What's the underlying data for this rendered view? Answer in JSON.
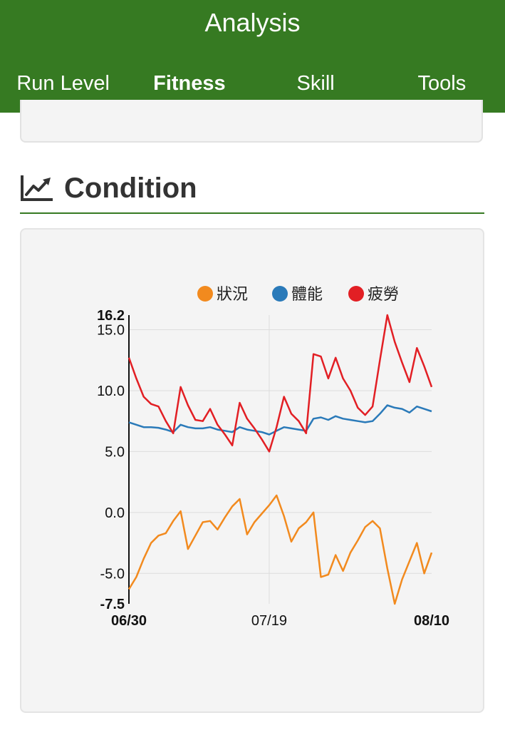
{
  "header": {
    "title": "Analysis",
    "tabs": [
      {
        "label": "Run Level",
        "active": false
      },
      {
        "label": "Fitness",
        "active": true
      },
      {
        "label": "Skill",
        "active": false
      },
      {
        "label": "Tools",
        "active": false
      }
    ]
  },
  "section": {
    "title": "Condition",
    "icon": "line-chart-icon"
  },
  "colors": {
    "header_bg": "#367a22",
    "tab_underline": "#5fd03a",
    "condition": "#f28a1e",
    "fitness": "#2a7ab9",
    "fatigue": "#e21f24"
  },
  "chart_data": {
    "type": "line",
    "title": "",
    "xlabel": "",
    "ylabel": "",
    "ylim": [
      -7.5,
      16.2
    ],
    "y_ticks": [
      15.0,
      10.0,
      5.0,
      0.0,
      -5.0
    ],
    "y_tick_labels": [
      "15.0",
      "10.0",
      "5.0",
      "0.0",
      "-5.0"
    ],
    "y_max_label": "16.2",
    "y_min_label": "-7.5",
    "x_range": [
      "06/30",
      "08/10"
    ],
    "x_tick_labels": [
      {
        "date": "06/30",
        "label": "06/30",
        "bold": true
      },
      {
        "date": "07/19",
        "label": "07/19",
        "bold": false
      },
      {
        "date": "08/10",
        "label": "08/10",
        "bold": true
      }
    ],
    "grid": true,
    "legend": "top",
    "x": [
      "06/30",
      "07/01",
      "07/02",
      "07/03",
      "07/04",
      "07/05",
      "07/06",
      "07/07",
      "07/08",
      "07/09",
      "07/10",
      "07/11",
      "07/12",
      "07/13",
      "07/14",
      "07/15",
      "07/16",
      "07/17",
      "07/18",
      "07/19",
      "07/20",
      "07/21",
      "07/22",
      "07/23",
      "07/24",
      "07/25",
      "07/26",
      "07/27",
      "07/28",
      "07/29",
      "07/30",
      "07/31",
      "08/01",
      "08/02",
      "08/03",
      "08/04",
      "08/05",
      "08/06",
      "08/07",
      "08/08",
      "08/09",
      "08/10"
    ],
    "series": [
      {
        "name": "狀況",
        "color": "#f28a1e",
        "values": [
          -6.3,
          -5.3,
          -3.8,
          -2.5,
          -1.9,
          -1.7,
          -0.7,
          0.1,
          -3.0,
          -1.9,
          -0.8,
          -0.7,
          -1.4,
          -0.4,
          0.5,
          1.1,
          -1.8,
          -0.8,
          -0.1,
          0.6,
          1.4,
          -0.3,
          -2.4,
          -1.3,
          -0.8,
          0.0,
          -5.3,
          -5.1,
          -3.5,
          -4.8,
          -3.3,
          -2.3,
          -1.2,
          -0.7,
          -1.3,
          -4.6,
          -7.5,
          -5.5,
          -4.0,
          -2.5,
          -5.0,
          -3.3
        ]
      },
      {
        "name": "體能",
        "color": "#2a7ab9",
        "values": [
          7.4,
          7.2,
          7.0,
          7.0,
          6.95,
          6.8,
          6.6,
          7.2,
          7.0,
          6.9,
          6.9,
          7.0,
          6.8,
          6.7,
          6.6,
          7.0,
          6.8,
          6.7,
          6.6,
          6.4,
          6.7,
          7.0,
          6.9,
          6.8,
          6.7,
          7.7,
          7.8,
          7.6,
          7.9,
          7.7,
          7.6,
          7.5,
          7.4,
          7.5,
          8.1,
          8.8,
          8.6,
          8.5,
          8.2,
          8.7,
          8.5,
          8.3
        ]
      },
      {
        "name": "疲勞",
        "color": "#e21f24",
        "values": [
          12.7,
          11.0,
          9.5,
          8.9,
          8.7,
          7.5,
          6.5,
          10.3,
          8.8,
          7.6,
          7.5,
          8.5,
          7.2,
          6.4,
          5.5,
          9.0,
          7.7,
          6.9,
          6.0,
          5.0,
          7.0,
          9.5,
          8.1,
          7.5,
          6.5,
          13.0,
          12.8,
          11.0,
          12.7,
          11.0,
          10.0,
          8.6,
          8.0,
          8.7,
          12.5,
          16.2,
          14.0,
          12.3,
          10.7,
          13.5,
          12.0,
          10.3
        ]
      }
    ]
  }
}
